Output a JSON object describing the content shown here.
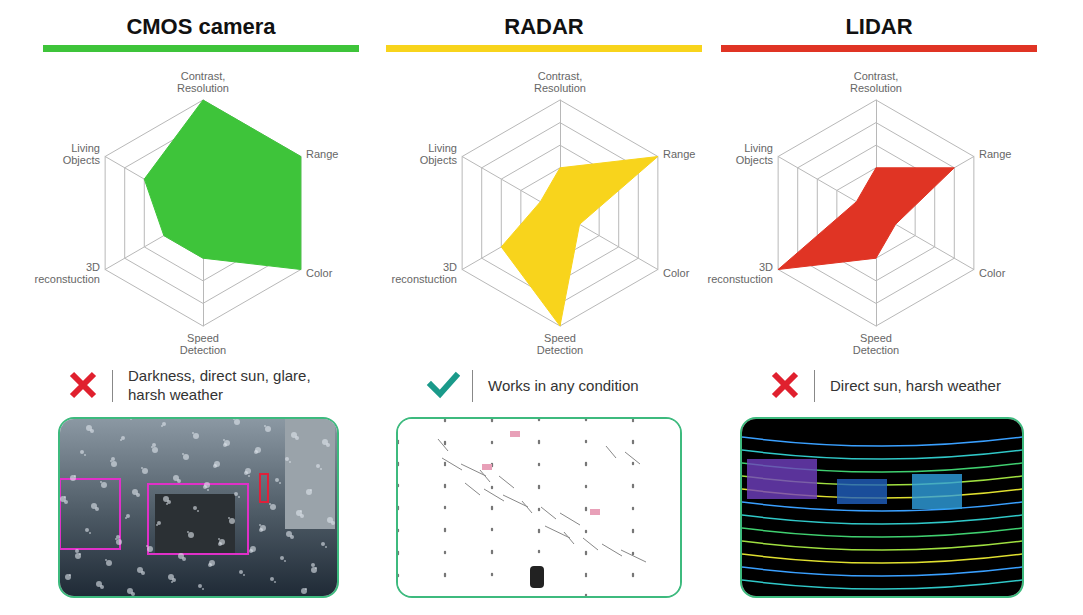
{
  "chart_data": [
    {
      "type": "radar",
      "title": "CMOS camera",
      "color": "#3ec43a",
      "indicators": [
        "Contrast, Resolution",
        "Living Objects",
        "3D reconstuction",
        "Speed Detection",
        "Color",
        "Range"
      ],
      "values": [
        5,
        3,
        2,
        2,
        5,
        5
      ],
      "rlim": [
        0,
        5
      ],
      "rticks": [
        0,
        1,
        2,
        3,
        4,
        5
      ],
      "tick_labels": false,
      "marker": "cross",
      "annotations": [
        "Darkness, direct sun, glare, harsh weather"
      ]
    },
    {
      "type": "radar",
      "title": "RADAR",
      "color": "#f8d41c",
      "indicators": [
        "Contrast, Resolution",
        "Living Objects",
        "3D reconstuction",
        "Speed Detection",
        "Color",
        "Range"
      ],
      "values": [
        2,
        1,
        3,
        5,
        1,
        5
      ],
      "rlim": [
        0,
        5
      ],
      "rticks": [
        0,
        1,
        2,
        3,
        4,
        5
      ],
      "tick_labels": false,
      "marker": "check",
      "annotations": [
        "Works in any condition"
      ]
    },
    {
      "type": "radar",
      "title": "LIDAR",
      "color": "#e03424",
      "indicators": [
        "Contrast, Resolution",
        "Living Objects",
        "3D reconstuction",
        "Speed Detection",
        "Color",
        "Range"
      ],
      "values": [
        2,
        1,
        5,
        2,
        1,
        4
      ],
      "rlim": [
        0,
        5
      ],
      "rticks": [
        0,
        1,
        2,
        3,
        4,
        5
      ],
      "tick_labels": false,
      "marker": "cross",
      "annotations": [
        "Direct sun, harsh weather"
      ]
    }
  ]
}
